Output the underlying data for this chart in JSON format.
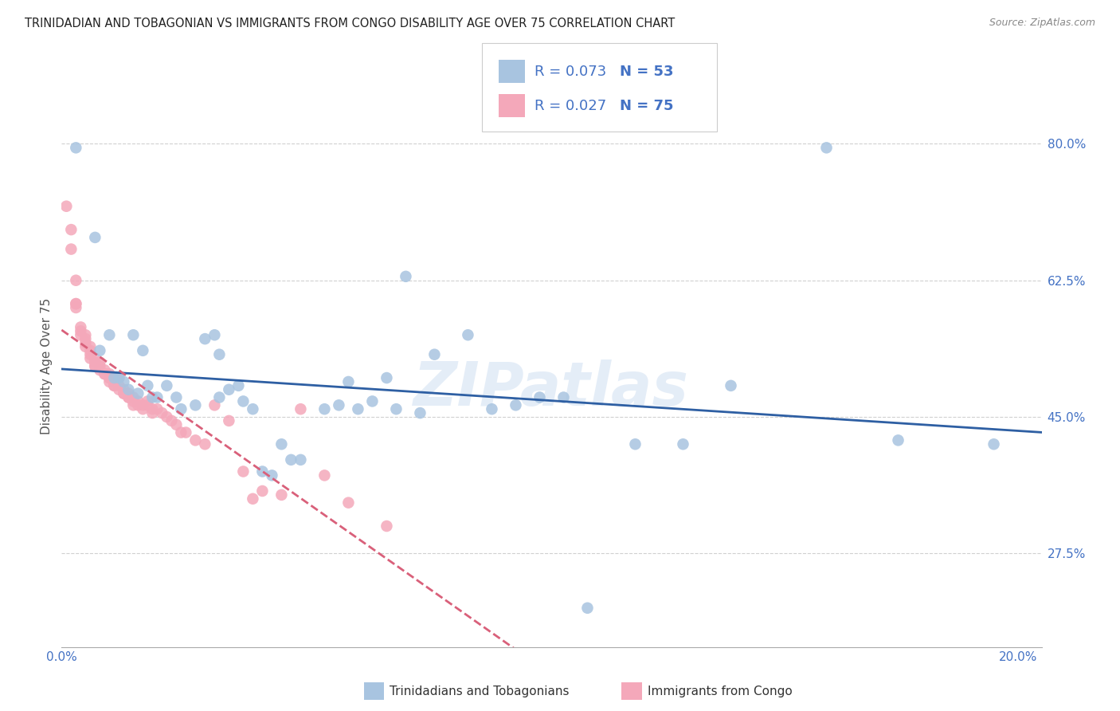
{
  "title": "TRINIDADIAN AND TOBAGONIAN VS IMMIGRANTS FROM CONGO DISABILITY AGE OVER 75 CORRELATION CHART",
  "source": "Source: ZipAtlas.com",
  "ylabel": "Disability Age Over 75",
  "xlim": [
    0.0,
    0.205
  ],
  "ylim": [
    0.155,
    0.875
  ],
  "yticks_right": [
    0.275,
    0.45,
    0.625,
    0.8
  ],
  "ytick_right_labels": [
    "27.5%",
    "45.0%",
    "62.5%",
    "80.0%"
  ],
  "grid_color": "#d0d0d0",
  "background_color": "#ffffff",
  "series1_label": "Trinidadians and Tobagonians",
  "series2_label": "Immigrants from Congo",
  "series1_color": "#a8c4e0",
  "series2_color": "#f4a8ba",
  "trend1_color": "#2e5fa3",
  "trend2_color": "#d9607a",
  "watermark": "ZIPatlas",
  "legend_r1": "R = 0.073",
  "legend_n1": "N = 53",
  "legend_r2": "R = 0.027",
  "legend_n2": "N = 75",
  "blue_dots_x": [
    0.003,
    0.007,
    0.008,
    0.01,
    0.011,
    0.012,
    0.013,
    0.014,
    0.015,
    0.016,
    0.017,
    0.018,
    0.019,
    0.02,
    0.022,
    0.024,
    0.025,
    0.028,
    0.03,
    0.032,
    0.033,
    0.033,
    0.035,
    0.037,
    0.038,
    0.04,
    0.042,
    0.044,
    0.046,
    0.048,
    0.05,
    0.055,
    0.058,
    0.06,
    0.062,
    0.065,
    0.068,
    0.07,
    0.072,
    0.075,
    0.078,
    0.085,
    0.09,
    0.095,
    0.1,
    0.105,
    0.11,
    0.12,
    0.13,
    0.14,
    0.16,
    0.175,
    0.195
  ],
  "blue_dots_y": [
    0.795,
    0.68,
    0.535,
    0.555,
    0.5,
    0.5,
    0.495,
    0.485,
    0.555,
    0.48,
    0.535,
    0.49,
    0.475,
    0.475,
    0.49,
    0.475,
    0.46,
    0.465,
    0.55,
    0.555,
    0.475,
    0.53,
    0.485,
    0.49,
    0.47,
    0.46,
    0.38,
    0.375,
    0.415,
    0.395,
    0.395,
    0.46,
    0.465,
    0.495,
    0.46,
    0.47,
    0.5,
    0.46,
    0.63,
    0.455,
    0.53,
    0.555,
    0.46,
    0.465,
    0.475,
    0.475,
    0.205,
    0.415,
    0.415,
    0.49,
    0.795,
    0.42,
    0.415
  ],
  "pink_dots_x": [
    0.001,
    0.002,
    0.002,
    0.003,
    0.003,
    0.003,
    0.003,
    0.004,
    0.004,
    0.004,
    0.005,
    0.005,
    0.005,
    0.005,
    0.006,
    0.006,
    0.006,
    0.006,
    0.007,
    0.007,
    0.007,
    0.007,
    0.008,
    0.008,
    0.008,
    0.009,
    0.009,
    0.009,
    0.01,
    0.01,
    0.01,
    0.01,
    0.011,
    0.011,
    0.011,
    0.011,
    0.012,
    0.012,
    0.012,
    0.013,
    0.013,
    0.013,
    0.014,
    0.014,
    0.014,
    0.015,
    0.015,
    0.015,
    0.016,
    0.016,
    0.017,
    0.017,
    0.018,
    0.018,
    0.019,
    0.019,
    0.02,
    0.021,
    0.022,
    0.023,
    0.024,
    0.025,
    0.026,
    0.028,
    0.03,
    0.032,
    0.035,
    0.038,
    0.04,
    0.042,
    0.046,
    0.05,
    0.055,
    0.06,
    0.068
  ],
  "pink_dots_y": [
    0.72,
    0.69,
    0.665,
    0.625,
    0.595,
    0.595,
    0.59,
    0.565,
    0.56,
    0.555,
    0.555,
    0.55,
    0.545,
    0.54,
    0.54,
    0.535,
    0.53,
    0.525,
    0.525,
    0.52,
    0.515,
    0.515,
    0.52,
    0.515,
    0.51,
    0.51,
    0.505,
    0.505,
    0.505,
    0.5,
    0.5,
    0.495,
    0.495,
    0.495,
    0.49,
    0.49,
    0.5,
    0.49,
    0.485,
    0.485,
    0.48,
    0.48,
    0.48,
    0.475,
    0.475,
    0.475,
    0.47,
    0.465,
    0.47,
    0.465,
    0.465,
    0.46,
    0.47,
    0.465,
    0.46,
    0.455,
    0.46,
    0.455,
    0.45,
    0.445,
    0.44,
    0.43,
    0.43,
    0.42,
    0.415,
    0.465,
    0.445,
    0.38,
    0.345,
    0.355,
    0.35,
    0.46,
    0.375,
    0.34,
    0.31
  ]
}
